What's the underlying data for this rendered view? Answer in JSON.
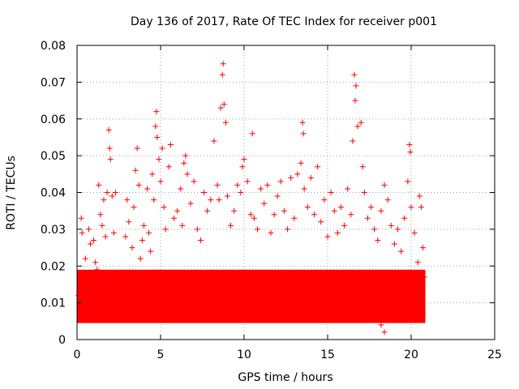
{
  "chart_data": {
    "type": "scatter",
    "title": "Day 136 of 2017, Rate Of TEC Index for receiver p001",
    "xlabel": "GPS time / hours",
    "ylabel": "ROTI / TECUs",
    "xlim": [
      0,
      25
    ],
    "ylim": [
      0,
      0.08
    ],
    "x_ticks": [
      "0",
      "5",
      "10",
      "15",
      "20",
      "25"
    ],
    "y_ticks": [
      "0",
      "0.01",
      "0.02",
      "0.03",
      "0.04",
      "0.05",
      "0.06",
      "0.07",
      "0.08"
    ],
    "grid": true,
    "marker": "+",
    "color": "#ff0000",
    "series": [
      {
        "points": [
          [
            0.1,
            0.012
          ],
          [
            0.2,
            0.018
          ],
          [
            0.25,
            0.033
          ],
          [
            0.3,
            0.029
          ],
          [
            0.4,
            0.008
          ],
          [
            0.5,
            0.022
          ],
          [
            0.6,
            0.015
          ],
          [
            0.7,
            0.03
          ],
          [
            0.8,
            0.026
          ],
          [
            0.9,
            0.011
          ],
          [
            1.0,
            0.027
          ],
          [
            1.1,
            0.021
          ],
          [
            1.2,
            0.019
          ],
          [
            1.3,
            0.042
          ],
          [
            1.4,
            0.034
          ],
          [
            1.5,
            0.031
          ],
          [
            1.6,
            0.038
          ],
          [
            1.7,
            0.028
          ],
          [
            1.8,
            0.04
          ],
          [
            1.9,
            0.057
          ],
          [
            1.95,
            0.052
          ],
          [
            2.0,
            0.049
          ],
          [
            2.1,
            0.039
          ],
          [
            2.2,
            0.029
          ],
          [
            2.3,
            0.04
          ],
          [
            2.5,
            0.009
          ],
          [
            2.7,
            0.014
          ],
          [
            2.9,
            0.028
          ],
          [
            3.0,
            0.038
          ],
          [
            3.1,
            0.032
          ],
          [
            3.3,
            0.025
          ],
          [
            3.4,
            0.036
          ],
          [
            3.5,
            0.046
          ],
          [
            3.6,
            0.052
          ],
          [
            3.7,
            0.042
          ],
          [
            3.8,
            0.022
          ],
          [
            3.9,
            0.027
          ],
          [
            4.0,
            0.031
          ],
          [
            4.2,
            0.041
          ],
          [
            4.3,
            0.029
          ],
          [
            4.4,
            0.024
          ],
          [
            4.5,
            0.045
          ],
          [
            4.6,
            0.038
          ],
          [
            4.7,
            0.058
          ],
          [
            4.75,
            0.062
          ],
          [
            4.8,
            0.055
          ],
          [
            4.9,
            0.049
          ],
          [
            5.0,
            0.043
          ],
          [
            5.1,
            0.052
          ],
          [
            5.2,
            0.036
          ],
          [
            5.3,
            0.03
          ],
          [
            5.5,
            0.047
          ],
          [
            5.6,
            0.053
          ],
          [
            5.8,
            0.033
          ],
          [
            6.0,
            0.035
          ],
          [
            6.2,
            0.041
          ],
          [
            6.3,
            0.031
          ],
          [
            6.4,
            0.048
          ],
          [
            6.5,
            0.05
          ],
          [
            6.6,
            0.045
          ],
          [
            6.8,
            0.037
          ],
          [
            7.0,
            0.043
          ],
          [
            7.2,
            0.03
          ],
          [
            7.4,
            0.027
          ],
          [
            7.6,
            0.04
          ],
          [
            7.8,
            0.035
          ],
          [
            8.0,
            0.038
          ],
          [
            8.2,
            0.054
          ],
          [
            8.4,
            0.042
          ],
          [
            8.5,
            0.038
          ],
          [
            8.6,
            0.063
          ],
          [
            8.7,
            0.072
          ],
          [
            8.75,
            0.075
          ],
          [
            8.8,
            0.064
          ],
          [
            8.9,
            0.059
          ],
          [
            9.0,
            0.039
          ],
          [
            9.2,
            0.031
          ],
          [
            9.4,
            0.035
          ],
          [
            9.6,
            0.042
          ],
          [
            9.8,
            0.04
          ],
          [
            9.9,
            0.047
          ],
          [
            10.0,
            0.049
          ],
          [
            10.2,
            0.043
          ],
          [
            10.4,
            0.034
          ],
          [
            10.5,
            0.056
          ],
          [
            10.6,
            0.033
          ],
          [
            10.8,
            0.03
          ],
          [
            11.0,
            0.041
          ],
          [
            11.2,
            0.037
          ],
          [
            11.4,
            0.042
          ],
          [
            11.6,
            0.029
          ],
          [
            11.8,
            0.034
          ],
          [
            12.0,
            0.039
          ],
          [
            12.2,
            0.043
          ],
          [
            12.4,
            0.035
          ],
          [
            12.6,
            0.03
          ],
          [
            12.8,
            0.044
          ],
          [
            13.0,
            0.033
          ],
          [
            13.2,
            0.045
          ],
          [
            13.4,
            0.048
          ],
          [
            13.5,
            0.059
          ],
          [
            13.55,
            0.056
          ],
          [
            13.6,
            0.041
          ],
          [
            13.8,
            0.036
          ],
          [
            14.0,
            0.044
          ],
          [
            14.2,
            0.034
          ],
          [
            14.4,
            0.047
          ],
          [
            14.6,
            0.032
          ],
          [
            14.8,
            0.038
          ],
          [
            15.0,
            0.028
          ],
          [
            15.2,
            0.04
          ],
          [
            15.4,
            0.035
          ],
          [
            15.6,
            0.029
          ],
          [
            15.8,
            0.036
          ],
          [
            16.0,
            0.031
          ],
          [
            16.2,
            0.041
          ],
          [
            16.4,
            0.034
          ],
          [
            16.5,
            0.054
          ],
          [
            16.6,
            0.072
          ],
          [
            16.65,
            0.065
          ],
          [
            16.7,
            0.069
          ],
          [
            16.8,
            0.058
          ],
          [
            17.0,
            0.059
          ],
          [
            17.1,
            0.047
          ],
          [
            17.2,
            0.04
          ],
          [
            17.4,
            0.033
          ],
          [
            17.6,
            0.036
          ],
          [
            17.8,
            0.03
          ],
          [
            18.0,
            0.027
          ],
          [
            18.2,
            0.035
          ],
          [
            18.4,
            0.042
          ],
          [
            18.6,
            0.038
          ],
          [
            18.8,
            0.031
          ],
          [
            19.0,
            0.026
          ],
          [
            19.2,
            0.03
          ],
          [
            19.4,
            0.024
          ],
          [
            19.6,
            0.033
          ],
          [
            19.8,
            0.043
          ],
          [
            19.9,
            0.053
          ],
          [
            19.95,
            0.051
          ],
          [
            20.0,
            0.036
          ],
          [
            20.2,
            0.029
          ],
          [
            20.4,
            0.021
          ],
          [
            20.5,
            0.039
          ],
          [
            20.6,
            0.036
          ],
          [
            20.7,
            0.025
          ],
          [
            20.8,
            0.017
          ],
          [
            0.15,
            0.006
          ],
          [
            0.5,
            0.007
          ],
          [
            1.1,
            0.009
          ],
          [
            1.6,
            0.006
          ],
          [
            2.2,
            0.008
          ],
          [
            2.6,
            0.006
          ],
          [
            3.2,
            0.007
          ],
          [
            3.8,
            0.008
          ],
          [
            4.4,
            0.006
          ],
          [
            5.0,
            0.009
          ],
          [
            5.6,
            0.006
          ],
          [
            6.2,
            0.008
          ],
          [
            6.8,
            0.006
          ],
          [
            7.4,
            0.007
          ],
          [
            8.0,
            0.009
          ],
          [
            8.6,
            0.007
          ],
          [
            9.2,
            0.006
          ],
          [
            9.8,
            0.008
          ],
          [
            10.4,
            0.006
          ],
          [
            11.0,
            0.007
          ],
          [
            11.6,
            0.009
          ],
          [
            12.2,
            0.006
          ],
          [
            12.8,
            0.008
          ],
          [
            13.4,
            0.006
          ],
          [
            14.0,
            0.007
          ],
          [
            14.6,
            0.009
          ],
          [
            15.2,
            0.006
          ],
          [
            15.8,
            0.008
          ],
          [
            16.4,
            0.006
          ],
          [
            17.0,
            0.007
          ],
          [
            17.6,
            0.009
          ],
          [
            18.2,
            0.004
          ],
          [
            18.4,
            0.002
          ],
          [
            19.0,
            0.006
          ],
          [
            19.6,
            0.008
          ],
          [
            20.2,
            0.006
          ],
          [
            20.7,
            0.007
          ]
        ]
      }
    ]
  }
}
